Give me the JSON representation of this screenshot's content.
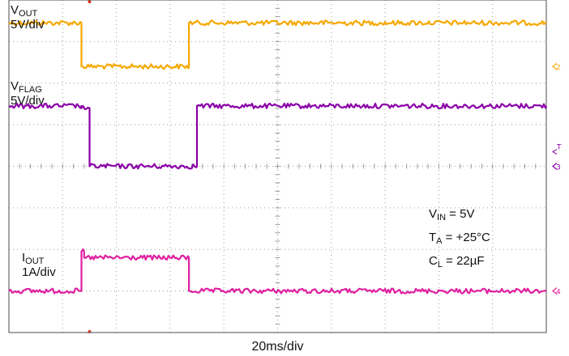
{
  "chart_data": {
    "type": "line",
    "title": "",
    "grid": true,
    "x": {
      "divisions": 10,
      "scale_label": "20ms/div",
      "range_div": [
        0,
        10
      ]
    },
    "y": {
      "divisions": 8,
      "range_div": [
        -4,
        4
      ]
    },
    "series": [
      {
        "name_main": "V",
        "name_sub": "OUT",
        "scale": "5V/div",
        "color": "#f5a800",
        "marker": "2",
        "points_div": [
          [
            0,
            3.45
          ],
          [
            1.35,
            3.45
          ],
          [
            1.35,
            2.4
          ],
          [
            3.35,
            2.4
          ],
          [
            3.35,
            3.45
          ],
          [
            10,
            3.45
          ]
        ]
      },
      {
        "name_main": "V",
        "name_sub": "FLAG",
        "scale": "5V/div",
        "color": "#8b00a8",
        "marker": "3",
        "points_div": [
          [
            0,
            1.45
          ],
          [
            1.35,
            1.45
          ],
          [
            1.35,
            1.4
          ],
          [
            1.5,
            1.4
          ],
          [
            1.5,
            0.0
          ],
          [
            3.5,
            0.0
          ],
          [
            3.5,
            1.45
          ],
          [
            10,
            1.45
          ]
        ]
      },
      {
        "name_main": "I",
        "name_sub": "OUT",
        "scale": "1A/div",
        "color": "#e020a0",
        "marker": "4",
        "points_div": [
          [
            0,
            -3.0
          ],
          [
            1.35,
            -3.0
          ],
          [
            1.35,
            -2.05
          ],
          [
            1.4,
            -2.05
          ],
          [
            1.4,
            -2.2
          ],
          [
            3.35,
            -2.2
          ],
          [
            3.35,
            -3.0
          ],
          [
            10,
            -3.0
          ]
        ]
      }
    ],
    "annotations": [
      {
        "main": "V",
        "sub": "IN",
        "rest": " = 5V"
      },
      {
        "main": "T",
        "sub": "A",
        "rest": " = +25°C"
      },
      {
        "main": "C",
        "sub": "L",
        "rest": " = 22µF"
      }
    ],
    "trigger_marker": "T"
  }
}
